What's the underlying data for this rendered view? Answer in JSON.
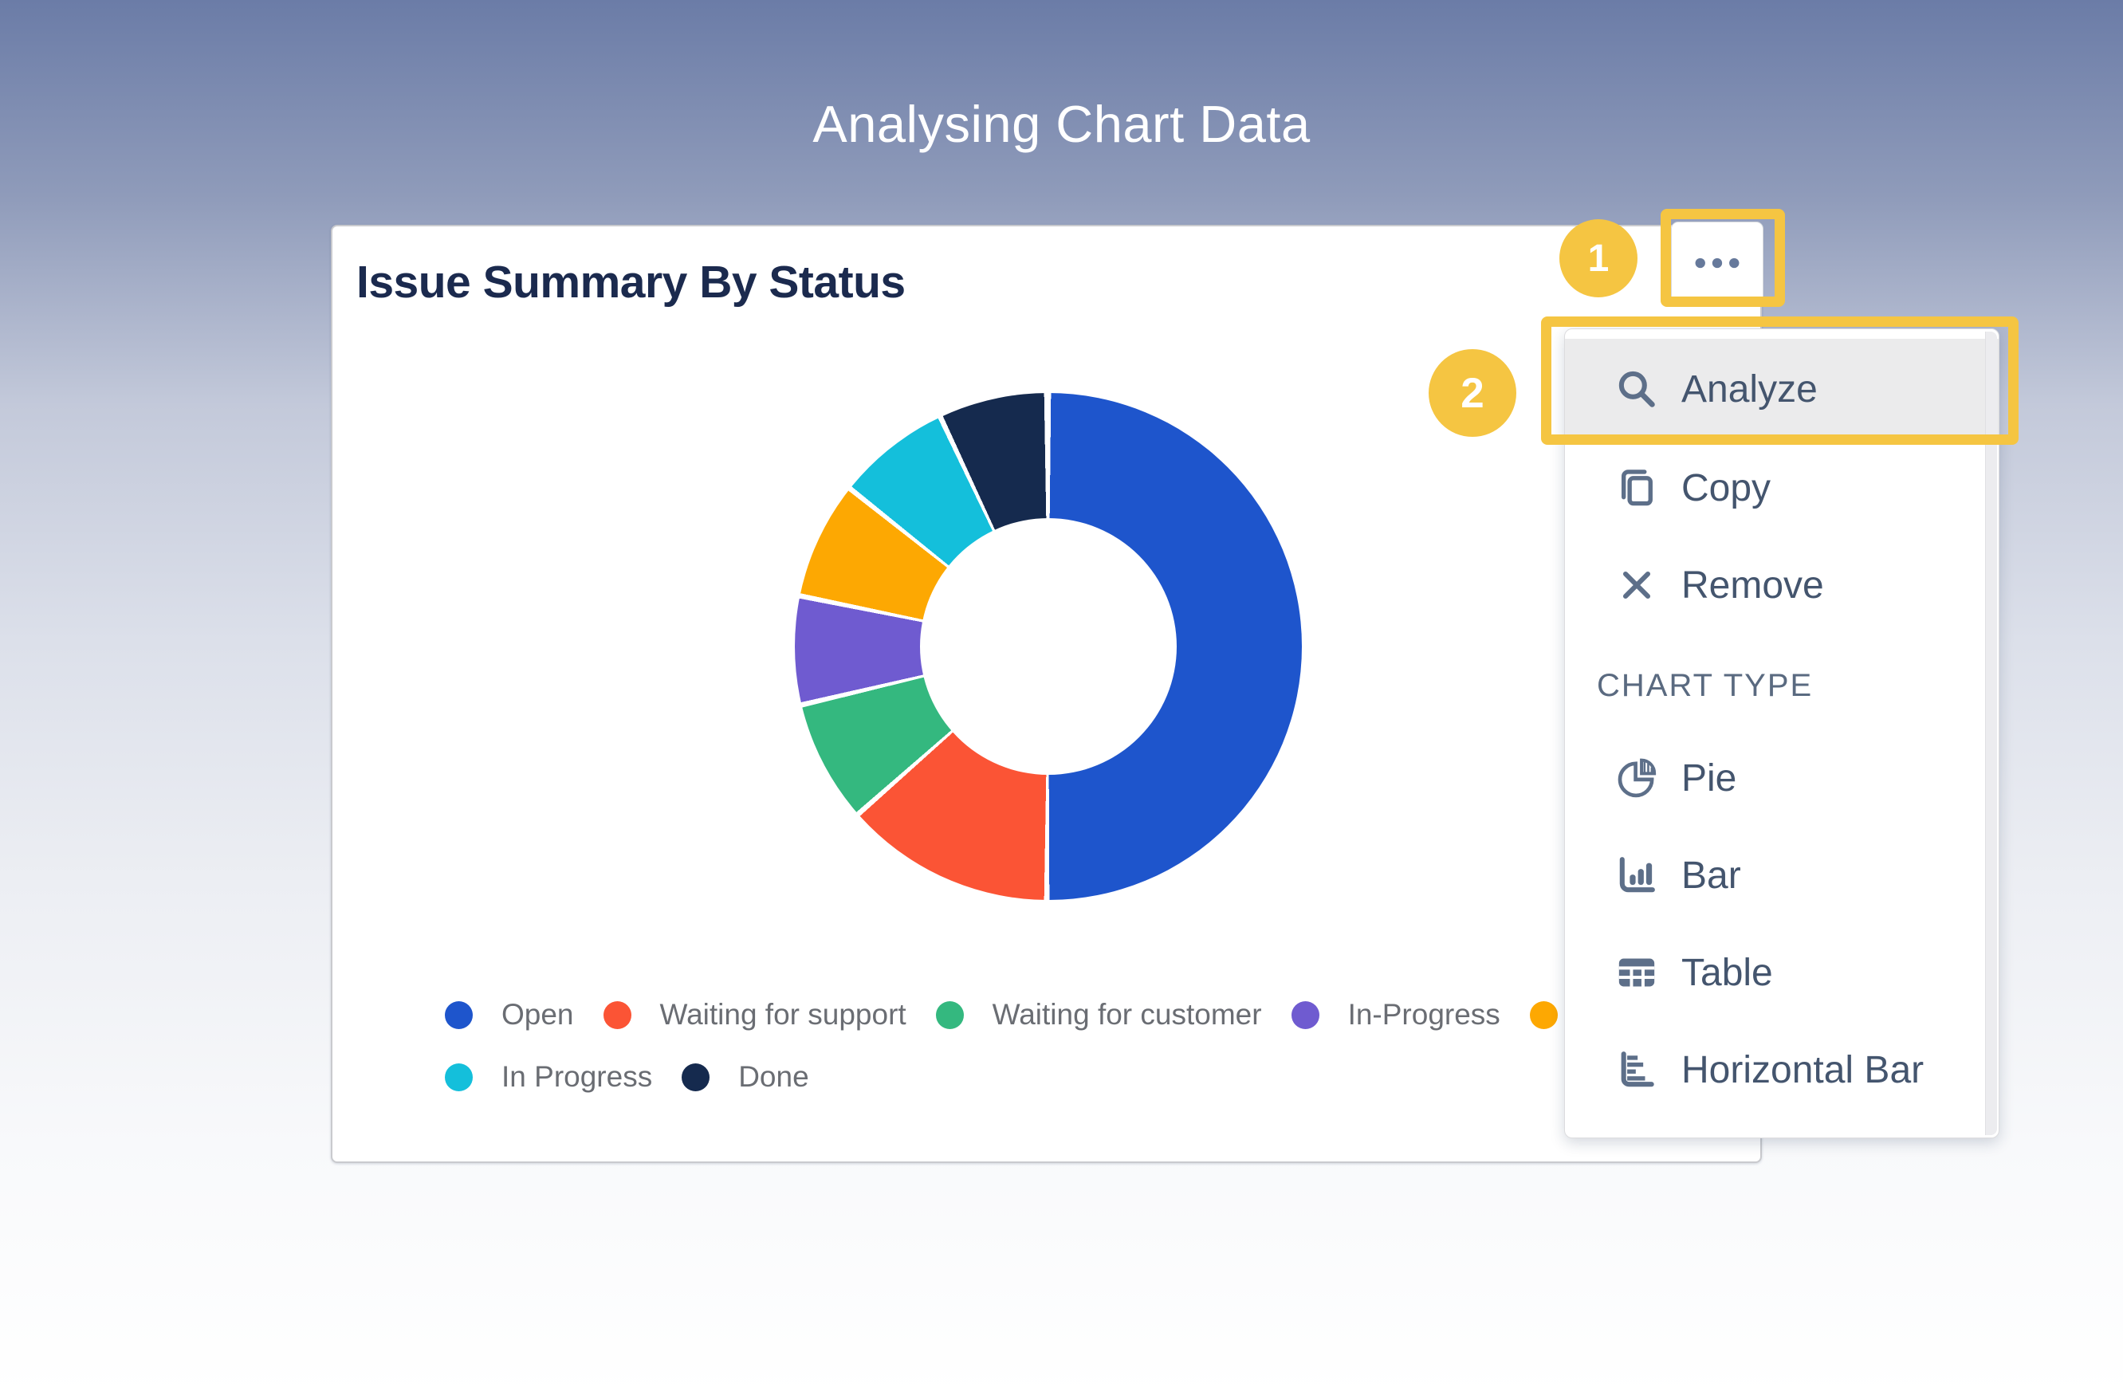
{
  "page_title": "Analysing Chart Data",
  "card": {
    "title": "Issue Summary By Status"
  },
  "widget_menu_button": {
    "icon": "ellipsis",
    "name": "more options"
  },
  "annotations": {
    "step1": "1",
    "step2": "2",
    "highlight_color": "#F5C542"
  },
  "menu": {
    "actions": [
      {
        "label": "Analyze",
        "icon": "search",
        "highlighted": true
      },
      {
        "label": "Copy",
        "icon": "copy",
        "highlighted": false
      },
      {
        "label": "Remove",
        "icon": "x",
        "highlighted": false
      }
    ],
    "section_header": "CHART TYPE",
    "chart_types": [
      {
        "label": "Pie",
        "icon": "pie"
      },
      {
        "label": "Bar",
        "icon": "bar"
      },
      {
        "label": "Table",
        "icon": "table"
      },
      {
        "label": "Horizontal Bar",
        "icon": "hbar"
      }
    ]
  },
  "chart_data": {
    "type": "pie",
    "subtype": "donut",
    "title": "Issue Summary By Status",
    "legend_position": "bottom",
    "values_are": "estimated percent of whole",
    "segments": [
      {
        "label": "Open",
        "color": "#1E55CC",
        "value_pct": 50.1,
        "legend_row": 1,
        "label_visible": true
      },
      {
        "label": "Waiting for support",
        "color": "#FB5435",
        "value_pct": 13.4,
        "legend_row": 1,
        "label_visible": true
      },
      {
        "label": "Waiting for customer",
        "color": "#34B87F",
        "value_pct": 7.8,
        "legend_row": 1,
        "label_visible": true
      },
      {
        "label": "In-Progress",
        "color": "#6F5BD0",
        "value_pct": 6.9,
        "legend_row": 1,
        "label_visible": true
      },
      {
        "label": "",
        "color": "#FDA802",
        "value_pct": 7.5,
        "legend_row": 1,
        "label_visible": false
      },
      {
        "label": "In Progress",
        "color": "#14BFDB",
        "value_pct": 7.3,
        "legend_row": 2,
        "label_visible": true
      },
      {
        "label": "Done",
        "color": "#152A4E",
        "value_pct": 6.9,
        "legend_row": 2,
        "label_visible": true
      }
    ]
  }
}
